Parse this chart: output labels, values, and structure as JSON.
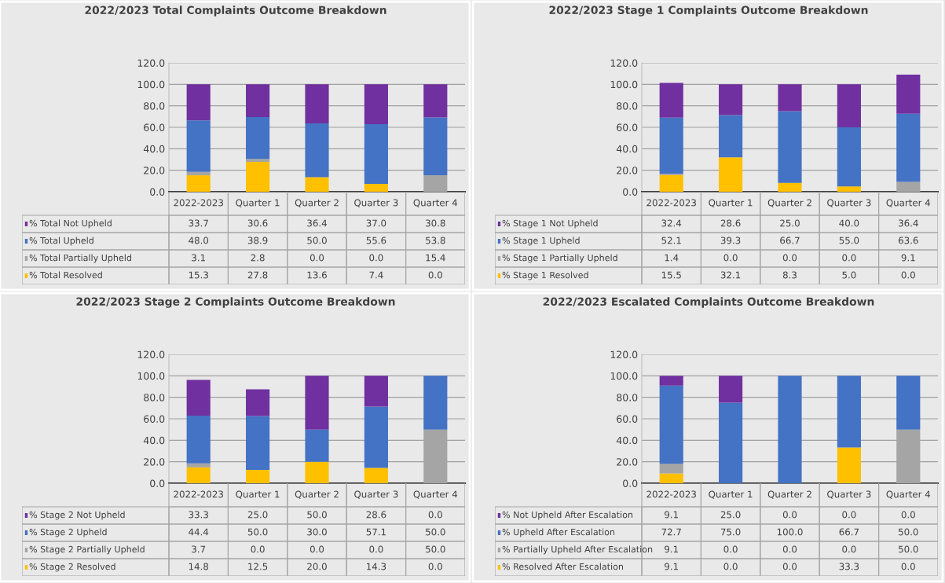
{
  "chart_data": [
    {
      "type": "bar",
      "stacked": true,
      "title": "2022/2023 Total Complaints Outcome Breakdown",
      "categories": [
        "2022-2023",
        "Quarter 1",
        "Quarter 2",
        "Quarter 3",
        "Quarter 4"
      ],
      "ylim": [
        0,
        120
      ],
      "yticks": [
        {
          "value": 0,
          "label": "0.0"
        },
        {
          "value": 20,
          "label": "20.0"
        },
        {
          "value": 40,
          "label": "40.0"
        },
        {
          "value": 60,
          "label": "60.0"
        },
        {
          "value": 80,
          "label": "80.0"
        },
        {
          "value": 100,
          "label": "100.0"
        },
        {
          "value": 120,
          "label": "120.0"
        }
      ],
      "grid": "y",
      "legend": "bottom left",
      "series": [
        {
          "name": "% Total Resolved",
          "color": "#ffc000",
          "values": [
            15.3,
            27.8,
            13.6,
            7.4,
            0.0
          ],
          "value_labels": [
            "15.3",
            "27.8",
            "13.6",
            "7.4",
            "0.0"
          ]
        },
        {
          "name": "% Total Partially Upheld",
          "color": "#a5a5a5",
          "values": [
            3.1,
            2.8,
            0.0,
            0.0,
            15.4
          ],
          "value_labels": [
            "3.1",
            "2.8",
            "0.0",
            "0.0",
            "15.4"
          ]
        },
        {
          "name": "% Total Upheld",
          "color": "#4472c4",
          "values": [
            48.0,
            38.9,
            50.0,
            55.6,
            53.8
          ],
          "value_labels": [
            "48.0",
            "38.9",
            "50.0",
            "55.6",
            "53.8"
          ]
        },
        {
          "name": "% Total Not Upheld",
          "color": "#7030a0",
          "values": [
            33.7,
            30.6,
            36.4,
            37.0,
            30.8
          ],
          "value_labels": [
            "33.7",
            "30.6",
            "36.4",
            "37.0",
            "30.8"
          ]
        }
      ]
    },
    {
      "type": "bar",
      "stacked": true,
      "title": "2022/2023 Stage 1 Complaints Outcome Breakdown",
      "categories": [
        "2022-2023",
        "Quarter 1",
        "Quarter 2",
        "Quarter 3",
        "Quarter 4"
      ],
      "ylim": [
        0,
        120
      ],
      "yticks": [
        {
          "value": 0,
          "label": "0.0"
        },
        {
          "value": 20,
          "label": "20.0"
        },
        {
          "value": 40,
          "label": "40.0"
        },
        {
          "value": 60,
          "label": "60.0"
        },
        {
          "value": 80,
          "label": "80.0"
        },
        {
          "value": 100,
          "label": "100.0"
        },
        {
          "value": 120,
          "label": "120.0"
        }
      ],
      "grid": "y",
      "legend": "bottom left",
      "series": [
        {
          "name": "% Stage 1 Resolved",
          "color": "#ffc000",
          "values": [
            15.5,
            32.1,
            8.3,
            5.0,
            0.0
          ],
          "value_labels": [
            "15.5",
            "32.1",
            "8.3",
            "5.0",
            "0.0"
          ]
        },
        {
          "name": "% Stage 1 Partially Upheld",
          "color": "#a5a5a5",
          "values": [
            1.4,
            0.0,
            0.0,
            0.0,
            9.1
          ],
          "value_labels": [
            "1.4",
            "0.0",
            "0.0",
            "0.0",
            "9.1"
          ]
        },
        {
          "name": "% Stage 1 Upheld",
          "color": "#4472c4",
          "values": [
            52.1,
            39.3,
            66.7,
            55.0,
            63.6
          ],
          "value_labels": [
            "52.1",
            "39.3",
            "66.7",
            "55.0",
            "63.6"
          ]
        },
        {
          "name": "% Stage 1 Not Upheld",
          "color": "#7030a0",
          "values": [
            32.4,
            28.6,
            25.0,
            40.0,
            36.4
          ],
          "value_labels": [
            "32.4",
            "28.6",
            "25.0",
            "40.0",
            "36.4"
          ]
        }
      ]
    },
    {
      "type": "bar",
      "stacked": true,
      "title": "2022/2023 Stage 2 Complaints Outcome Breakdown",
      "categories": [
        "2022-2023",
        "Quarter 1",
        "Quarter 2",
        "Quarter 3",
        "Quarter 4"
      ],
      "ylim": [
        0,
        120
      ],
      "yticks": [
        {
          "value": 0,
          "label": "0.0"
        },
        {
          "value": 20,
          "label": "20.0"
        },
        {
          "value": 40,
          "label": "40.0"
        },
        {
          "value": 60,
          "label": "60.0"
        },
        {
          "value": 80,
          "label": "80.0"
        },
        {
          "value": 100,
          "label": "100.0"
        },
        {
          "value": 120,
          "label": "120.0"
        }
      ],
      "grid": "y",
      "legend": "bottom left",
      "series": [
        {
          "name": "% Stage 2 Resolved",
          "color": "#ffc000",
          "values": [
            14.8,
            12.5,
            20.0,
            14.3,
            0.0
          ],
          "value_labels": [
            "14.8",
            "12.5",
            "20.0",
            "14.3",
            "0.0"
          ]
        },
        {
          "name": "% Stage 2 Partially Upheld",
          "color": "#a5a5a5",
          "values": [
            3.7,
            0.0,
            0.0,
            0.0,
            50.0
          ],
          "value_labels": [
            "3.7",
            "0.0",
            "0.0",
            "0.0",
            "50.0"
          ]
        },
        {
          "name": "% Stage 2 Upheld",
          "color": "#4472c4",
          "values": [
            44.4,
            50.0,
            30.0,
            57.1,
            50.0
          ],
          "value_labels": [
            "44.4",
            "50.0",
            "30.0",
            "57.1",
            "50.0"
          ]
        },
        {
          "name": "% Stage 2 Not Upheld",
          "color": "#7030a0",
          "values": [
            33.3,
            25.0,
            50.0,
            28.6,
            0.0
          ],
          "value_labels": [
            "33.3",
            "25.0",
            "50.0",
            "28.6",
            "0.0"
          ]
        }
      ]
    },
    {
      "type": "bar",
      "stacked": true,
      "title": "2022/2023 Escalated Complaints Outcome Breakdown",
      "categories": [
        "2022-2023",
        "Quarter 1",
        "Quarter 2",
        "Quarter 3",
        "Quarter 4"
      ],
      "ylim": [
        0,
        120
      ],
      "yticks": [
        {
          "value": 0,
          "label": "0.0"
        },
        {
          "value": 20,
          "label": "20.0"
        },
        {
          "value": 40,
          "label": "40.0"
        },
        {
          "value": 60,
          "label": "60.0"
        },
        {
          "value": 80,
          "label": "80.0"
        },
        {
          "value": 100,
          "label": "100.0"
        },
        {
          "value": 120,
          "label": "120.0"
        }
      ],
      "grid": "y",
      "legend": "bottom left",
      "series": [
        {
          "name": "% Resolved After Escalation",
          "color": "#ffc000",
          "values": [
            9.1,
            0.0,
            0.0,
            33.3,
            0.0
          ],
          "value_labels": [
            "9.1",
            "0.0",
            "0.0",
            "33.3",
            "0.0"
          ]
        },
        {
          "name": "% Partially Upheld After Escalation",
          "color": "#a5a5a5",
          "values": [
            9.1,
            0.0,
            0.0,
            0.0,
            50.0
          ],
          "value_labels": [
            "9.1",
            "0.0",
            "0.0",
            "0.0",
            "50.0"
          ]
        },
        {
          "name": "% Upheld After Escalation",
          "color": "#4472c4",
          "values": [
            72.7,
            75.0,
            100.0,
            66.7,
            50.0
          ],
          "value_labels": [
            "72.7",
            "75.0",
            "100.0",
            "66.7",
            "50.0"
          ]
        },
        {
          "name": "% Not Upheld After Escalation",
          "color": "#7030a0",
          "values": [
            9.1,
            25.0,
            0.0,
            0.0,
            0.0
          ],
          "value_labels": [
            "9.1",
            "25.0",
            "0.0",
            "0.0",
            "0.0"
          ]
        }
      ]
    }
  ]
}
